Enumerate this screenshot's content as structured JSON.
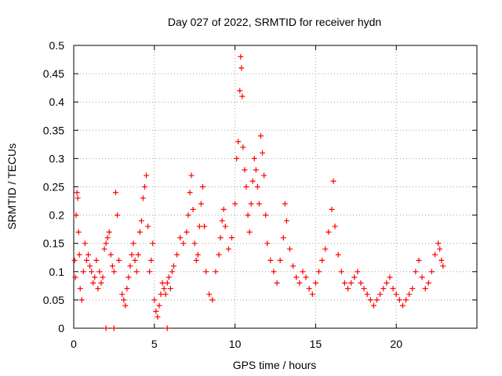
{
  "chart_data": {
    "type": "scatter",
    "title": "Day 027 of 2022, SRMTID for receiver hydn",
    "xlabel": "GPS time / hours",
    "ylabel": "SRMTID / TECUs",
    "xlim": [
      0,
      25
    ],
    "ylim": [
      0,
      0.5
    ],
    "x_ticks": [
      0,
      5,
      10,
      15,
      20
    ],
    "x_tick_labels": [
      "0",
      "5",
      "10",
      "15",
      "20"
    ],
    "y_ticks": [
      0,
      0.05,
      0.1,
      0.15,
      0.2,
      0.25,
      0.3,
      0.35,
      0.4,
      0.45,
      0.5
    ],
    "y_tick_labels": [
      "0",
      "0.05",
      "0.1",
      "0.15",
      "0.2",
      "0.25",
      "0.3",
      "0.35",
      "0.4",
      "0.45",
      "0.5"
    ],
    "grid": true,
    "marker": "+",
    "color": "#ff0000",
    "series": [
      {
        "name": "SRMTID",
        "points": [
          [
            0.05,
            0.12
          ],
          [
            0.1,
            0.09
          ],
          [
            0.15,
            0.2
          ],
          [
            0.2,
            0.24
          ],
          [
            0.25,
            0.23
          ],
          [
            0.3,
            0.17
          ],
          [
            0.35,
            0.13
          ],
          [
            0.4,
            0.07
          ],
          [
            0.5,
            0.05
          ],
          [
            0.6,
            0.1
          ],
          [
            0.7,
            0.15
          ],
          [
            0.8,
            0.12
          ],
          [
            0.9,
            0.13
          ],
          [
            1.0,
            0.11
          ],
          [
            1.1,
            0.1
          ],
          [
            1.2,
            0.08
          ],
          [
            1.3,
            0.09
          ],
          [
            1.4,
            0.12
          ],
          [
            1.5,
            0.07
          ],
          [
            1.6,
            0.1
          ],
          [
            1.7,
            0.08
          ],
          [
            1.8,
            0.09
          ],
          [
            1.9,
            0.14
          ],
          [
            2.0,
            0.15
          ],
          [
            2.1,
            0.16
          ],
          [
            2.2,
            0.17
          ],
          [
            2.3,
            0.13
          ],
          [
            2.4,
            0.11
          ],
          [
            2.5,
            0.1
          ],
          [
            2.6,
            0.24
          ],
          [
            2.7,
            0.2
          ],
          [
            2.8,
            0.12
          ],
          [
            3.0,
            0.06
          ],
          [
            3.1,
            0.05
          ],
          [
            3.2,
            0.04
          ],
          [
            3.3,
            0.07
          ],
          [
            3.4,
            0.09
          ],
          [
            3.5,
            0.11
          ],
          [
            3.6,
            0.13
          ],
          [
            3.7,
            0.15
          ],
          [
            3.8,
            0.12
          ],
          [
            3.9,
            0.1
          ],
          [
            4.0,
            0.13
          ],
          [
            4.1,
            0.17
          ],
          [
            4.2,
            0.19
          ],
          [
            4.3,
            0.23
          ],
          [
            4.4,
            0.25
          ],
          [
            4.5,
            0.27
          ],
          [
            4.6,
            0.18
          ],
          [
            4.7,
            0.1
          ],
          [
            4.8,
            0.12
          ],
          [
            4.9,
            0.15
          ],
          [
            5.0,
            0.05
          ],
          [
            5.1,
            0.03
          ],
          [
            5.2,
            0.02
          ],
          [
            5.3,
            0.04
          ],
          [
            5.4,
            0.06
          ],
          [
            5.5,
            0.08
          ],
          [
            5.6,
            0.07
          ],
          [
            5.7,
            0.06
          ],
          [
            5.8,
            0.08
          ],
          [
            5.9,
            0.09
          ],
          [
            6.0,
            0.07
          ],
          [
            6.1,
            0.1
          ],
          [
            6.2,
            0.11
          ],
          [
            6.4,
            0.13
          ],
          [
            6.6,
            0.16
          ],
          [
            6.8,
            0.15
          ],
          [
            7.0,
            0.17
          ],
          [
            7.1,
            0.2
          ],
          [
            7.2,
            0.24
          ],
          [
            7.3,
            0.27
          ],
          [
            7.4,
            0.21
          ],
          [
            7.5,
            0.15
          ],
          [
            7.6,
            0.12
          ],
          [
            7.7,
            0.13
          ],
          [
            7.8,
            0.18
          ],
          [
            7.9,
            0.22
          ],
          [
            8.0,
            0.25
          ],
          [
            8.1,
            0.18
          ],
          [
            8.2,
            0.1
          ],
          [
            8.4,
            0.06
          ],
          [
            8.6,
            0.05
          ],
          [
            8.8,
            0.1
          ],
          [
            9.0,
            0.13
          ],
          [
            9.1,
            0.16
          ],
          [
            9.2,
            0.19
          ],
          [
            9.3,
            0.21
          ],
          [
            9.4,
            0.18
          ],
          [
            9.6,
            0.14
          ],
          [
            9.8,
            0.16
          ],
          [
            10.0,
            0.22
          ],
          [
            10.1,
            0.3
          ],
          [
            10.2,
            0.33
          ],
          [
            10.3,
            0.42
          ],
          [
            10.35,
            0.48
          ],
          [
            10.4,
            0.46
          ],
          [
            10.45,
            0.41
          ],
          [
            10.5,
            0.32
          ],
          [
            10.6,
            0.28
          ],
          [
            10.7,
            0.25
          ],
          [
            10.8,
            0.2
          ],
          [
            10.9,
            0.17
          ],
          [
            11.0,
            0.22
          ],
          [
            11.1,
            0.26
          ],
          [
            11.2,
            0.3
          ],
          [
            11.3,
            0.28
          ],
          [
            11.4,
            0.25
          ],
          [
            11.5,
            0.22
          ],
          [
            11.6,
            0.34
          ],
          [
            11.7,
            0.31
          ],
          [
            11.8,
            0.27
          ],
          [
            11.9,
            0.2
          ],
          [
            12.0,
            0.15
          ],
          [
            12.2,
            0.12
          ],
          [
            12.4,
            0.1
          ],
          [
            12.6,
            0.08
          ],
          [
            12.8,
            0.12
          ],
          [
            13.0,
            0.16
          ],
          [
            13.1,
            0.22
          ],
          [
            13.2,
            0.19
          ],
          [
            13.4,
            0.14
          ],
          [
            13.6,
            0.11
          ],
          [
            13.8,
            0.09
          ],
          [
            14.0,
            0.08
          ],
          [
            14.2,
            0.1
          ],
          [
            14.4,
            0.09
          ],
          [
            14.6,
            0.07
          ],
          [
            14.8,
            0.06
          ],
          [
            15.0,
            0.08
          ],
          [
            15.2,
            0.1
          ],
          [
            15.4,
            0.12
          ],
          [
            15.6,
            0.14
          ],
          [
            15.8,
            0.17
          ],
          [
            16.0,
            0.21
          ],
          [
            16.1,
            0.26
          ],
          [
            16.2,
            0.18
          ],
          [
            16.4,
            0.13
          ],
          [
            16.6,
            0.1
          ],
          [
            16.8,
            0.08
          ],
          [
            17.0,
            0.07
          ],
          [
            17.2,
            0.08
          ],
          [
            17.4,
            0.09
          ],
          [
            17.6,
            0.1
          ],
          [
            17.8,
            0.08
          ],
          [
            18.0,
            0.07
          ],
          [
            18.2,
            0.06
          ],
          [
            18.4,
            0.05
          ],
          [
            18.6,
            0.04
          ],
          [
            18.8,
            0.05
          ],
          [
            19.0,
            0.06
          ],
          [
            19.2,
            0.07
          ],
          [
            19.4,
            0.08
          ],
          [
            19.6,
            0.09
          ],
          [
            19.8,
            0.07
          ],
          [
            20.0,
            0.06
          ],
          [
            20.2,
            0.05
          ],
          [
            20.4,
            0.04
          ],
          [
            20.6,
            0.05
          ],
          [
            20.8,
            0.06
          ],
          [
            21.0,
            0.07
          ],
          [
            21.2,
            0.1
          ],
          [
            21.4,
            0.12
          ],
          [
            21.6,
            0.09
          ],
          [
            21.8,
            0.07
          ],
          [
            22.0,
            0.08
          ],
          [
            22.2,
            0.1
          ],
          [
            22.4,
            0.13
          ],
          [
            22.6,
            0.15
          ],
          [
            22.7,
            0.14
          ],
          [
            22.8,
            0.12
          ],
          [
            22.9,
            0.11
          ],
          [
            2.0,
            0.0
          ],
          [
            2.5,
            0.0
          ],
          [
            5.8,
            0.0
          ]
        ]
      }
    ]
  }
}
